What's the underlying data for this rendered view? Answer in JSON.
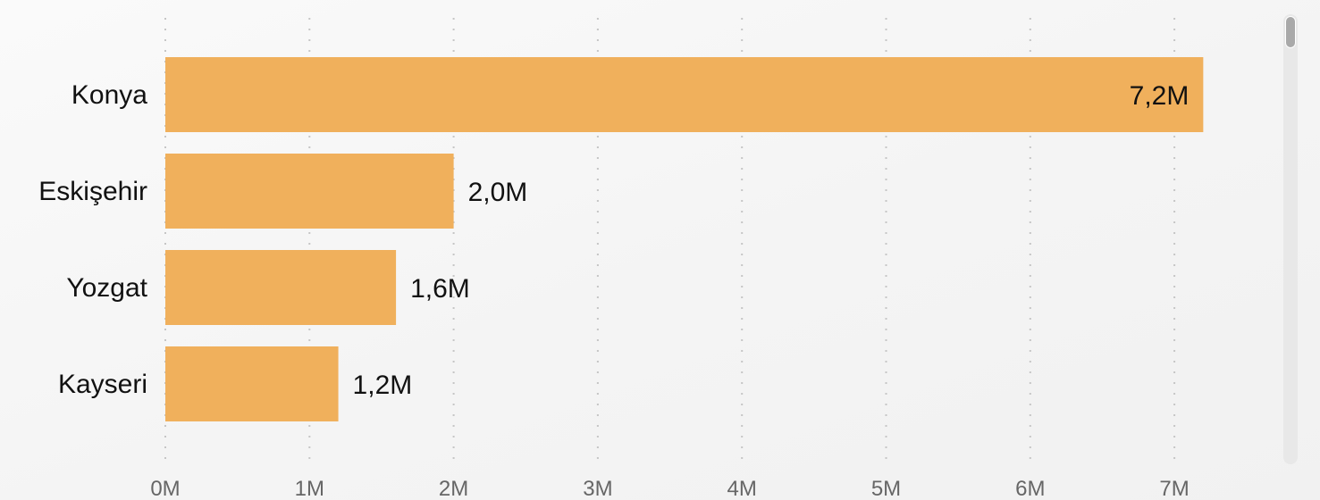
{
  "colors": {
    "bar": "#F0B05C",
    "label": "#111111",
    "tick": "#666666",
    "grid": "#C6C6C6"
  },
  "chart_data": {
    "type": "bar",
    "orientation": "horizontal",
    "categories": [
      "Konya",
      "Eskişehir",
      "Yozgat",
      "Kayseri"
    ],
    "values": [
      7200000,
      2000000,
      1600000,
      1200000
    ],
    "data_labels": [
      "7,2M",
      "2,0M",
      "1,6M",
      "1,2M"
    ],
    "xticks": [
      0,
      1000000,
      2000000,
      3000000,
      4000000,
      5000000,
      6000000,
      7000000
    ],
    "xtick_labels": [
      "0M",
      "1M",
      "2M",
      "3M",
      "4M",
      "5M",
      "6M",
      "7M"
    ],
    "xlim": [
      0,
      7200000
    ],
    "grid": "vertical-dotted",
    "legend": "none",
    "title": "",
    "xlabel": "",
    "ylabel": ""
  },
  "scrollbar": {
    "position": 0
  }
}
